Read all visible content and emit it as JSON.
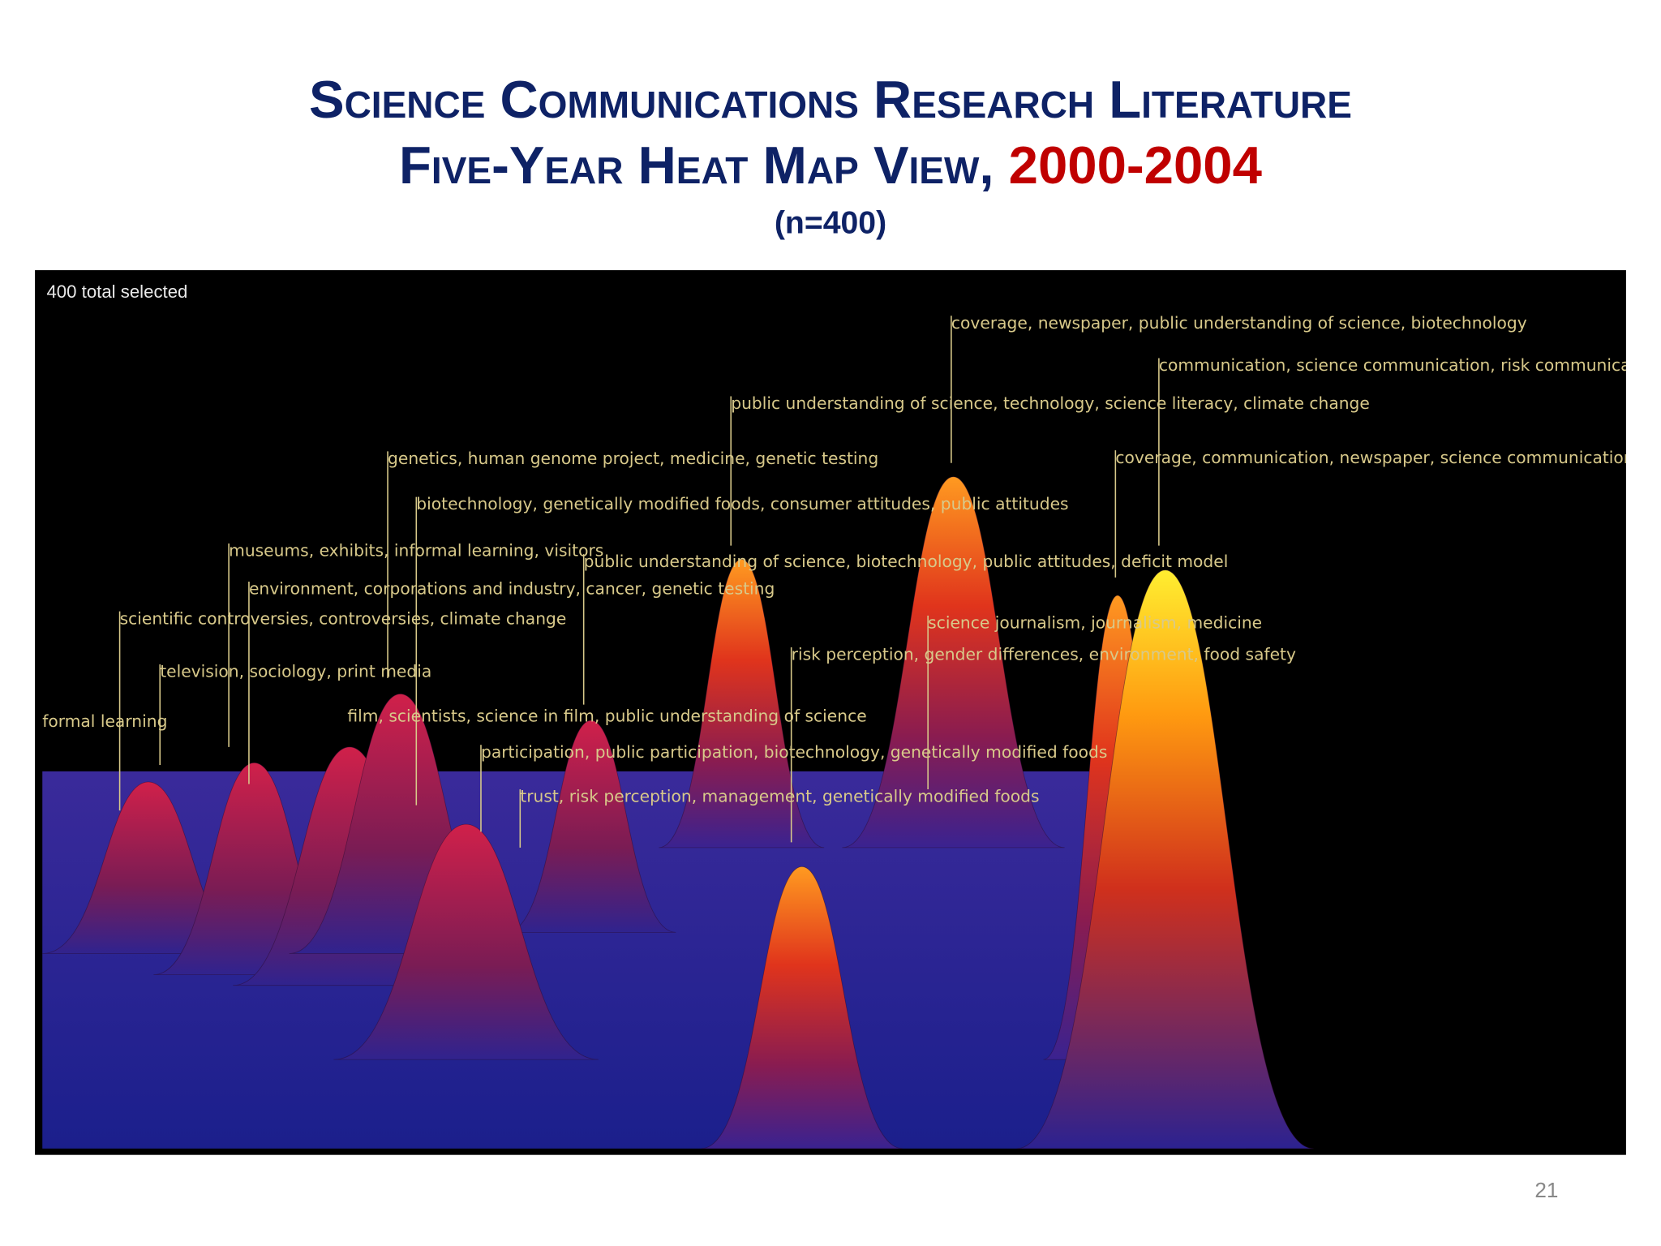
{
  "slide": {
    "title_line1": "Science Communications Research Literature",
    "title_line2": "Five-Year Heat Map View, ",
    "title_years": "2000-2004",
    "subtitle": "(n=400)",
    "panel_status": "400 total selected",
    "labels": [
      "coverage, newspaper, public understanding of science, biotechnology",
      "communication, science communication, risk communication, wo",
      "public understanding of science, technology, science literacy, climate change",
      "genetics, human genome project, medicine, genetic testing",
      "coverage, communication, newspaper, science communication",
      "biotechnology, genetically modified foods, consumer attitudes, public attitudes",
      "museums, exhibits, informal learning, visitors",
      "public understanding of science, biotechnology, public attitudes, deficit model",
      "environment, corporations and industry, cancer, genetic testing",
      "scientific controversies, controversies, climate change",
      "science journalism, journalism, medicine",
      "risk perception, gender differences, environment, food safety",
      "television, sociology, print media",
      "formal learning",
      "film, scientists, science in film, public understanding of science",
      "participation, public participation, biotechnology, genetically modified foods",
      "trust, risk perception, management, genetically modified foods"
    ],
    "page_number": "21"
  }
}
